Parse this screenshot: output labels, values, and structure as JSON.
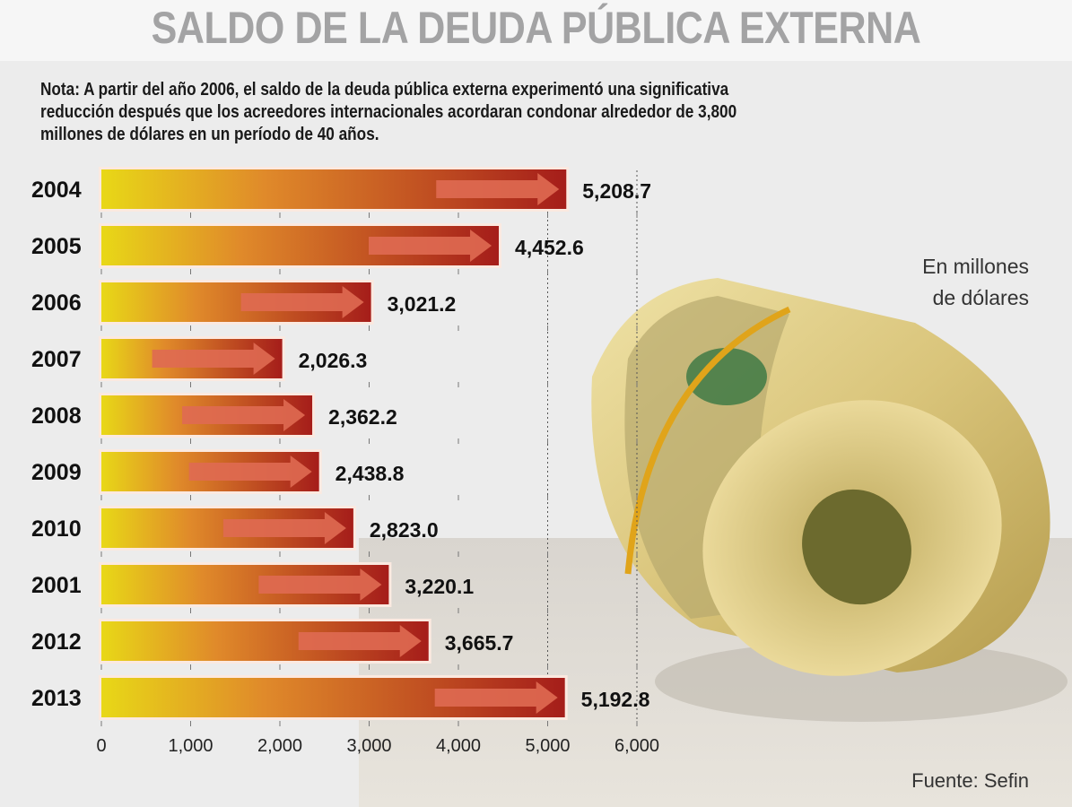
{
  "title": "SALDO DE LA DEUDA PÚBLICA EXTERNA",
  "note": [
    "Nota: A partir del año 2006, el saldo de la deuda pública externa experimentó una significativa",
    "reducción después que los acreedores internacionales acordaran condonar alrededor de 3,800",
    "millones de dólares en un período de 40 años."
  ],
  "unit": [
    "En millones",
    "de dólares"
  ],
  "source": "Fuente: Sefin",
  "colors": {
    "bar_start": "#e8d817",
    "bar_mid": "#e07a2a",
    "bar_end": "#a51d1a",
    "arrow": "#df6a52",
    "title": "#a3a3a4"
  },
  "chart_data": {
    "type": "bar",
    "orientation": "horizontal",
    "categories": [
      "2004",
      "2005",
      "2006",
      "2007",
      "2008",
      "2009",
      "2010",
      "2001",
      "2012",
      "2013"
    ],
    "values": [
      5208.7,
      4452.6,
      3021.2,
      2026.3,
      2362.2,
      2438.8,
      2823.0,
      3220.1,
      3665.7,
      5192.8
    ],
    "value_labels": [
      "5,208.7",
      "4,452.6",
      "3,021.2",
      "2,026.3",
      "2,362.2",
      "2,438.8",
      "2,823.0",
      "3,220.1",
      "3,665.7",
      "5,192.8"
    ],
    "xlim": [
      0,
      6000
    ],
    "xticks": [
      0,
      1000,
      2000,
      3000,
      4000,
      5000,
      6000
    ],
    "xtick_labels": [
      "0",
      "1,000",
      "2,000",
      "3,000",
      "4,000",
      "5,000",
      "6,000"
    ],
    "grid": "dotted vertical lines at 5,000 and 6,000"
  }
}
